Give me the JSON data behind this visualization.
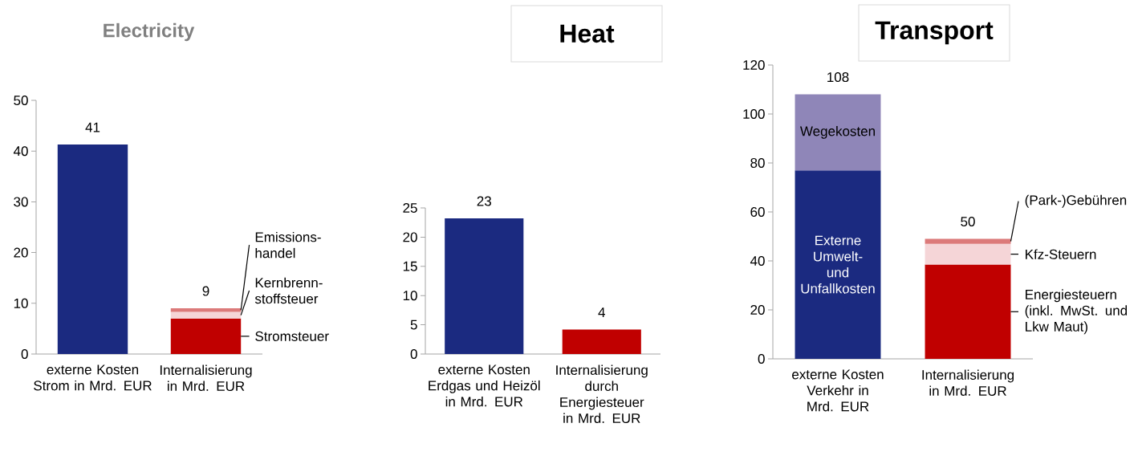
{
  "chart_data": [
    {
      "type": "bar",
      "stacked": true,
      "title": "Electricity",
      "categories": [
        "externe Kosten Strom in Mrd. EUR",
        "Internalisierung in Mrd. EUR"
      ],
      "series": [
        {
          "color": "#1b2a80",
          "values": [
            41.3,
            null
          ]
        },
        {
          "name": "Stromsteuer",
          "color": "#c00000",
          "values": [
            null,
            7.0
          ]
        },
        {
          "name": "Kernbrenn-stoffsteuer",
          "color": "#f5d5d7",
          "values": [
            null,
            1.3
          ]
        },
        {
          "name": "Emissions-handel",
          "color": "#dc7a7a",
          "values": [
            null,
            0.7
          ]
        }
      ],
      "totals": [
        "41",
        "9"
      ],
      "ylim": [
        0,
        50
      ],
      "yticks": [
        0,
        10,
        20,
        30,
        40,
        50
      ]
    },
    {
      "type": "bar",
      "title": "Heat",
      "categories": [
        "externe Kosten Erdgas und Heizöl in Mrd. EUR",
        "Internalisierung durch Energiesteuer in Mrd. EUR"
      ],
      "values": [
        23.2,
        4.2
      ],
      "colors": [
        "#1b2a80",
        "#c00000"
      ],
      "value_labels": [
        "23",
        "4"
      ],
      "ylim": [
        0,
        25
      ],
      "yticks": [
        0,
        5,
        10,
        15,
        20,
        25
      ]
    },
    {
      "type": "bar",
      "stacked": true,
      "title": "Transport",
      "categories": [
        "externe Kosten Verkehr in Mrd. EUR",
        "Internalisierung in Mrd. EUR"
      ],
      "series": [
        {
          "name": "Externe Umwelt- und Unfallkosten",
          "color": "#1b2a80",
          "values": [
            77,
            null
          ]
        },
        {
          "name": "Wegekosten",
          "color": "#8f86b8",
          "values": [
            31,
            null
          ]
        },
        {
          "name": "Energiesteuern (inkl. MwSt. und Lkw Maut)",
          "color": "#c00000",
          "values": [
            null,
            38.5
          ]
        },
        {
          "name": "Kfz-Steuern",
          "color": "#f5d5d7",
          "values": [
            null,
            8.5
          ]
        },
        {
          "name": "(Park-)Gebühren",
          "color": "#dc7a7a",
          "values": [
            null,
            2
          ]
        }
      ],
      "totals": [
        "108",
        "50"
      ],
      "ylim": [
        0,
        120
      ],
      "yticks": [
        0,
        20,
        40,
        60,
        80,
        100,
        120
      ]
    }
  ]
}
